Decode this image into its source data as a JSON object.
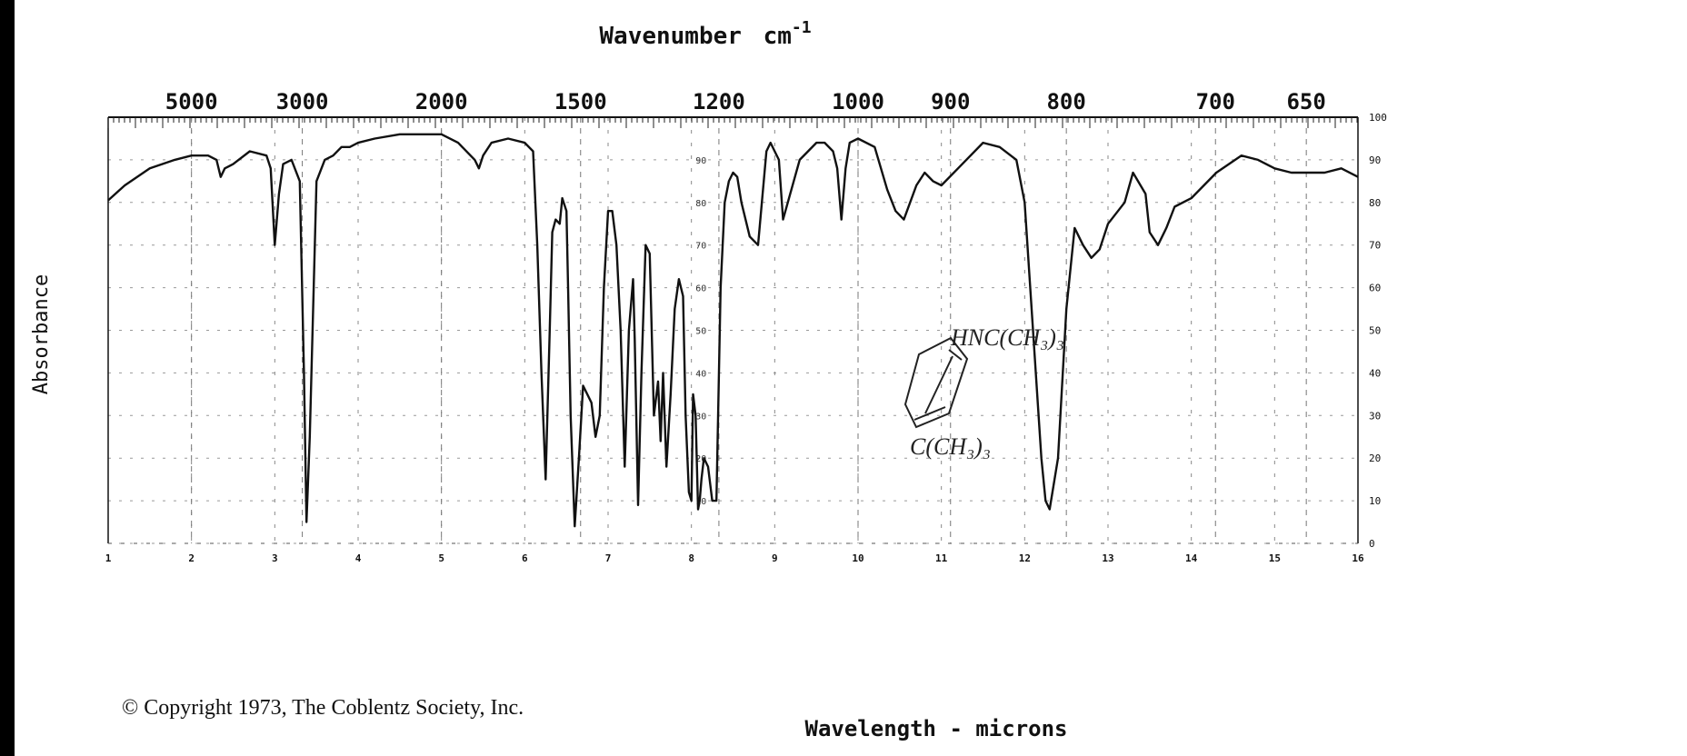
{
  "chart_data": {
    "type": "line",
    "title": "",
    "top_axis_label": "Wavenumber",
    "top_axis_unit": "cm",
    "top_axis_unit_exp": "-1",
    "bottom_axis_label": "Wavelength - microns",
    "left_axis_label": "Absorbance",
    "copyright": "© Copyright 1973, The Coblentz Society, Inc.",
    "xlim_microns": [
      1,
      16
    ],
    "ylim": [
      0,
      100
    ],
    "wavenumber_ticks": [
      {
        "label": "5000",
        "micron": 2.0
      },
      {
        "label": "3000",
        "micron": 3.33
      },
      {
        "label": "2000",
        "micron": 5.0
      },
      {
        "label": "1500",
        "micron": 6.67
      },
      {
        "label": "1200",
        "micron": 8.33
      },
      {
        "label": "1000",
        "micron": 10.0
      },
      {
        "label": "900",
        "micron": 11.11
      },
      {
        "label": "800",
        "micron": 12.5
      },
      {
        "label": "700",
        "micron": 14.29
      },
      {
        "label": "650",
        "micron": 15.38
      }
    ],
    "micron_ticks": [
      "1",
      "2",
      "3",
      "4",
      "5",
      "6",
      "7",
      "8",
      "9",
      "10",
      "11",
      "12",
      "13",
      "14",
      "15",
      "16"
    ],
    "right_ticks": [
      "100",
      "90",
      "80",
      "70",
      "60",
      "50",
      "40",
      "30",
      "20",
      "10",
      "0"
    ],
    "mid_ticks": [
      "90",
      "80",
      "70",
      "60",
      "50",
      "40",
      "30",
      "20",
      "10"
    ],
    "series": [
      {
        "x": [
          1.0,
          1.2,
          1.5,
          1.8,
          2.0,
          2.2,
          2.3,
          2.35,
          2.4,
          2.5,
          2.7,
          2.9,
          2.95,
          3.0,
          3.05,
          3.1,
          3.2,
          3.3,
          3.35,
          3.38,
          3.42,
          3.5,
          3.6,
          3.7,
          3.8,
          3.9,
          4.0,
          4.2,
          4.5,
          4.8,
          5.0,
          5.2,
          5.4,
          5.45,
          5.5,
          5.6,
          5.8,
          6.0,
          6.1,
          6.15,
          6.2,
          6.25,
          6.3,
          6.33,
          6.37,
          6.42,
          6.45,
          6.5,
          6.52,
          6.55,
          6.6,
          6.65,
          6.7,
          6.8,
          6.85,
          6.9,
          6.95,
          7.0,
          7.05,
          7.1,
          7.15,
          7.2,
          7.25,
          7.3,
          7.32,
          7.36,
          7.4,
          7.45,
          7.5,
          7.55,
          7.6,
          7.63,
          7.66,
          7.7,
          7.75,
          7.8,
          7.85,
          7.9,
          7.93,
          7.97,
          8.0,
          8.02,
          8.05,
          8.08,
          8.1,
          8.12,
          8.15,
          8.2,
          8.25,
          8.3,
          8.35,
          8.4,
          8.45,
          8.5,
          8.55,
          8.6,
          8.7,
          8.8,
          8.9,
          8.95,
          9.0,
          9.05,
          9.1,
          9.3,
          9.5,
          9.6,
          9.7,
          9.75,
          9.8,
          9.85,
          9.9,
          10.0,
          10.2,
          10.35,
          10.45,
          10.55,
          10.7,
          10.8,
          10.9,
          11.0,
          11.2,
          11.5,
          11.7,
          11.9,
          12.0,
          12.1,
          12.2,
          12.25,
          12.3,
          12.4,
          12.5,
          12.6,
          12.7,
          12.8,
          12.9,
          13.0,
          13.2,
          13.3,
          13.45,
          13.5,
          13.6,
          13.7,
          13.8,
          14.0,
          14.3,
          14.6,
          14.8,
          15.0,
          15.2,
          15.4,
          15.6,
          15.8,
          16.0
        ],
        "y": [
          80.5,
          84,
          88,
          90,
          91,
          91,
          90,
          86,
          88,
          89,
          92,
          91,
          88,
          70,
          82,
          89,
          90,
          85,
          40,
          5,
          25,
          85,
          90,
          91,
          93,
          93,
          94,
          95,
          96,
          96,
          96,
          94,
          90,
          88,
          91,
          94,
          95,
          94,
          92,
          70,
          40,
          15,
          50,
          73,
          76,
          75,
          81,
          78,
          60,
          30,
          4,
          20,
          37,
          33,
          25,
          30,
          60,
          78,
          78,
          70,
          50,
          18,
          50,
          62,
          48,
          9,
          40,
          70,
          68,
          30,
          38,
          24,
          40,
          18,
          35,
          55,
          62,
          58,
          30,
          12,
          10,
          35,
          30,
          8,
          10,
          15,
          20,
          18,
          10,
          10,
          60,
          80,
          85,
          87,
          86,
          80,
          72,
          70,
          92,
          94,
          92,
          90,
          76,
          90,
          94,
          94,
          92,
          88,
          76,
          88,
          94,
          95,
          93,
          83,
          78,
          76,
          84,
          87,
          85,
          84,
          88,
          94,
          93,
          90,
          80,
          50,
          20,
          10,
          8,
          20,
          55,
          74,
          70,
          67,
          69,
          75,
          80,
          87,
          82,
          73,
          70,
          74,
          79,
          81,
          87,
          91,
          90,
          88,
          87,
          87,
          87,
          88,
          86
        ]
      }
    ],
    "annotation_lines": [
      "HNC(CH₃)₃",
      "C(CH₃)₃"
    ]
  }
}
